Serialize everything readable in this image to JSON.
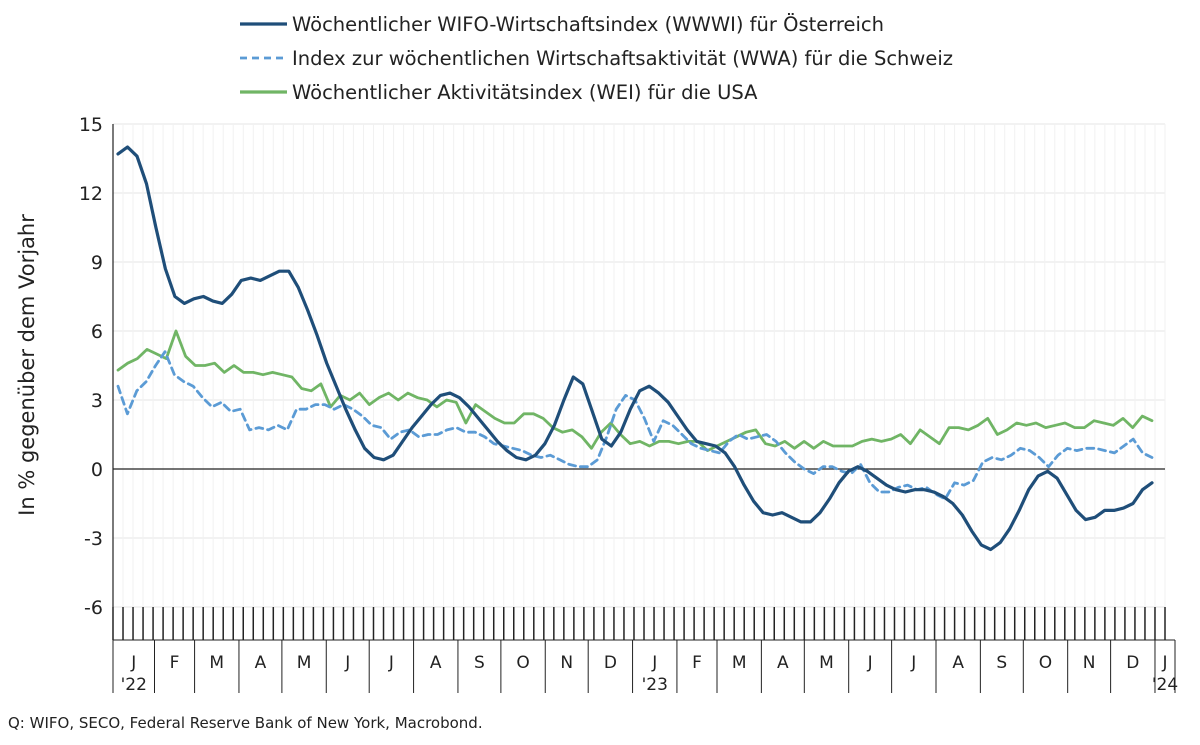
{
  "chart_data": {
    "type": "line",
    "title": "",
    "xlabel": "",
    "ylabel": "In % gegenüber dem Vorjahr",
    "ylim": [
      -6,
      15
    ],
    "yticks": [
      -6,
      -3,
      0,
      3,
      6,
      9,
      12,
      15
    ],
    "grid": true,
    "legend_position": "top",
    "x_start": "2022-01-03",
    "x_end": "2024-01-08",
    "month_labels": [
      "J",
      "F",
      "M",
      "A",
      "M",
      "J",
      "J",
      "A",
      "S",
      "O",
      "N",
      "D",
      "J",
      "F",
      "M",
      "A",
      "M",
      "J",
      "J",
      "A",
      "S",
      "O",
      "N",
      "D",
      "J"
    ],
    "year_labels": [
      {
        "label": "'22",
        "month_index": 0
      },
      {
        "label": "'23",
        "month_index": 12
      },
      {
        "label": "'24",
        "month_index": 24
      }
    ],
    "series": [
      {
        "name": "Wöchentlicher WIFO-Wirtschaftsindex (WWWI) für Österreich",
        "color": "#1f4e79",
        "style": "solid",
        "values": [
          13.7,
          14.0,
          13.6,
          12.4,
          10.5,
          8.7,
          7.5,
          7.2,
          7.4,
          7.5,
          7.3,
          7.2,
          7.6,
          8.2,
          8.3,
          8.2,
          8.4,
          8.6,
          8.6,
          7.9,
          6.9,
          5.8,
          4.6,
          3.6,
          2.6,
          1.7,
          0.9,
          0.5,
          0.4,
          0.6,
          1.2,
          1.8,
          2.3,
          2.8,
          3.2,
          3.3,
          3.1,
          2.7,
          2.2,
          1.7,
          1.2,
          0.8,
          0.5,
          0.4,
          0.6,
          1.1,
          1.9,
          3.0,
          4.0,
          3.7,
          2.5,
          1.3,
          1.0,
          1.6,
          2.6,
          3.4,
          3.6,
          3.3,
          2.9,
          2.3,
          1.7,
          1.2,
          1.1,
          1.0,
          0.7,
          0.1,
          -0.7,
          -1.4,
          -1.9,
          -2.0,
          -1.9,
          -2.1,
          -2.3,
          -2.3,
          -1.9,
          -1.3,
          -0.6,
          -0.1,
          0.1,
          -0.1,
          -0.4,
          -0.7,
          -0.9,
          -1.0,
          -0.9,
          -0.9,
          -1.0,
          -1.2,
          -1.5,
          -2.0,
          -2.7,
          -3.3,
          -3.5,
          -3.2,
          -2.6,
          -1.8,
          -0.9,
          -0.3,
          -0.1,
          -0.4,
          -1.1,
          -1.8,
          -2.2,
          -2.1,
          -1.8,
          -1.8,
          -1.7,
          -1.5,
          -0.9,
          -0.6
        ]
      },
      {
        "name": "Index zur wöchentlichen Wirtschaftsaktivität (WWA) für die Schweiz",
        "color": "#5b9bd5",
        "style": "dashed",
        "values": [
          3.6,
          2.4,
          3.4,
          3.8,
          4.5,
          5.1,
          4.1,
          3.8,
          3.6,
          3.1,
          2.7,
          2.9,
          2.5,
          2.6,
          1.7,
          1.8,
          1.7,
          1.9,
          1.7,
          2.6,
          2.6,
          2.8,
          2.8,
          2.6,
          2.8,
          2.6,
          2.3,
          1.9,
          1.8,
          1.3,
          1.6,
          1.7,
          1.4,
          1.5,
          1.5,
          1.7,
          1.8,
          1.6,
          1.6,
          1.4,
          1.1,
          1.0,
          0.9,
          0.8,
          0.6,
          0.5,
          0.6,
          0.4,
          0.2,
          0.1,
          0.1,
          0.4,
          1.4,
          2.6,
          3.2,
          3.0,
          2.2,
          1.2,
          2.1,
          1.9,
          1.5,
          1.1,
          0.9,
          0.8,
          0.7,
          1.2,
          1.5,
          1.3,
          1.4,
          1.5,
          1.2,
          0.7,
          0.3,
          0.0,
          -0.2,
          0.1,
          0.1,
          -0.1,
          -0.2,
          0.2,
          -0.6,
          -1.0,
          -1.0,
          -0.8,
          -0.7,
          -0.9,
          -0.8,
          -1.1,
          -1.3,
          -0.6,
          -0.7,
          -0.5,
          0.3,
          0.5,
          0.4,
          0.6,
          0.9,
          0.8,
          0.5,
          0.1,
          0.6,
          0.9,
          0.8,
          0.9,
          0.9,
          0.8,
          0.7,
          1.0,
          1.3,
          0.7,
          0.5
        ]
      },
      {
        "name": "Wöchentlicher Aktivitätsindex (WEI) für die USA",
        "color": "#70b565",
        "style": "solid",
        "values": [
          4.3,
          4.6,
          4.8,
          5.2,
          5.0,
          4.8,
          6.0,
          4.9,
          4.5,
          4.5,
          4.6,
          4.2,
          4.5,
          4.2,
          4.2,
          4.1,
          4.2,
          4.1,
          4.0,
          3.5,
          3.4,
          3.7,
          2.7,
          3.2,
          3.0,
          3.3,
          2.8,
          3.1,
          3.3,
          3.0,
          3.3,
          3.1,
          3.0,
          2.7,
          3.0,
          2.9,
          2.0,
          2.8,
          2.5,
          2.2,
          2.0,
          2.0,
          2.4,
          2.4,
          2.2,
          1.8,
          1.6,
          1.7,
          1.4,
          0.9,
          1.6,
          2.0,
          1.5,
          1.1,
          1.2,
          1.0,
          1.2,
          1.2,
          1.1,
          1.2,
          1.2,
          0.8,
          1.0,
          1.2,
          1.4,
          1.6,
          1.7,
          1.1,
          1.0,
          1.2,
          0.9,
          1.2,
          0.9,
          1.2,
          1.0,
          1.0,
          1.0,
          1.2,
          1.3,
          1.2,
          1.3,
          1.5,
          1.1,
          1.7,
          1.4,
          1.1,
          1.8,
          1.8,
          1.7,
          1.9,
          2.2,
          1.5,
          1.7,
          2.0,
          1.9,
          2.0,
          1.8,
          1.9,
          2.0,
          1.8,
          1.8,
          2.1,
          2.0,
          1.9,
          2.2,
          1.8,
          2.3,
          2.1
        ]
      }
    ]
  },
  "source": "Q: WIFO, SECO, Federal Reserve Bank of New York, Macrobond."
}
